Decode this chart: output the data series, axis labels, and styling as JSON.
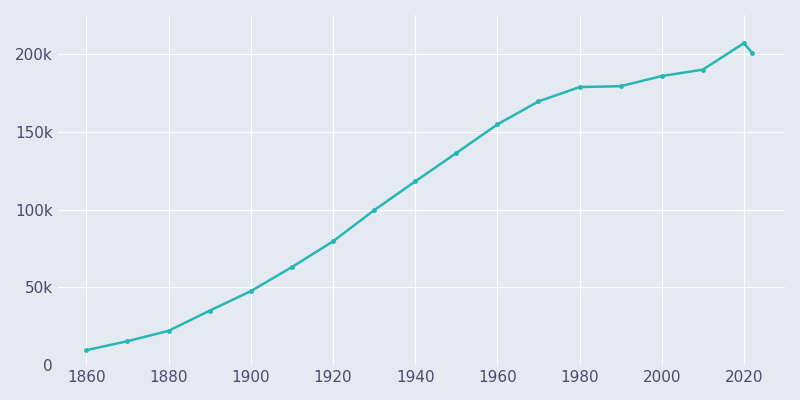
{
  "years": [
    1860,
    1870,
    1880,
    1890,
    1900,
    1910,
    1920,
    1930,
    1940,
    1950,
    1960,
    1970,
    1980,
    1990,
    2000,
    2010,
    2020,
    2022
  ],
  "population": [
    9621,
    15389,
    22053,
    35000,
    47527,
    62980,
    79516,
    99519,
    118028,
    136264,
    154664,
    169441,
    178681,
    179278,
    185781,
    189885,
    206922,
    200579
  ],
  "line_color": "#2AB5B5",
  "marker": "o",
  "marker_size": 2.5,
  "line_width": 1.8,
  "bg_color": "#E3EAF2",
  "grid_color": "#ffffff",
  "xlabel": "",
  "ylabel": "",
  "xlim": [
    1853,
    2030
  ],
  "ylim": [
    0,
    225000
  ],
  "yticks": [
    0,
    50000,
    100000,
    150000,
    200000
  ],
  "ytick_labels": [
    "0",
    "50k",
    "100k",
    "150k",
    "200k"
  ],
  "xticks": [
    1860,
    1880,
    1900,
    1920,
    1940,
    1960,
    1980,
    2000,
    2020
  ],
  "tick_color": "#4a4a6a",
  "tick_fontsize": 11
}
